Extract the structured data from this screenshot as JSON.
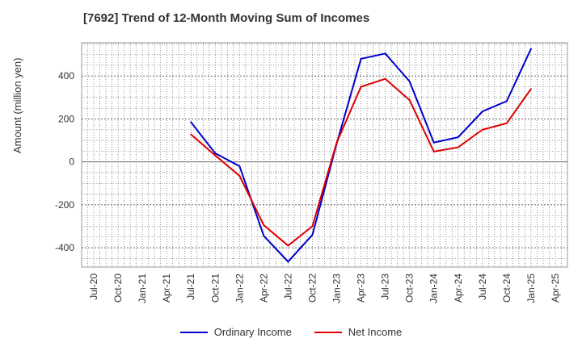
{
  "chart_data": {
    "type": "line",
    "title": "[7692]  Trend of 12-Month Moving Sum of Incomes",
    "xlabel": "",
    "ylabel": "Amount (million yen)",
    "categories": [
      "Jul-20",
      "Oct-20",
      "Jan-21",
      "Apr-21",
      "Jul-21",
      "Oct-21",
      "Jan-22",
      "Apr-22",
      "Jul-22",
      "Oct-22",
      "Jan-23",
      "Apr-23",
      "Jul-23",
      "Oct-23",
      "Jan-24",
      "Apr-24",
      "Jul-24",
      "Oct-24",
      "Jan-25",
      "Apr-25"
    ],
    "ylim": [
      -490,
      555
    ],
    "yticks": [
      -400,
      -200,
      0,
      200,
      400
    ],
    "ytick_labels": [
      "-400",
      "-200",
      "0",
      "200",
      "400"
    ],
    "grid": true,
    "legend_position": "bottom-center",
    "series": [
      {
        "name": "Ordinary Income",
        "color": "#0000cc",
        "values": [
          null,
          null,
          null,
          null,
          185,
          40,
          -20,
          -345,
          -465,
          -340,
          85,
          480,
          505,
          375,
          90,
          115,
          235,
          283,
          527,
          null
        ]
      },
      {
        "name": "Net Income",
        "color": "#dd0000",
        "values": [
          null,
          null,
          null,
          null,
          128,
          30,
          -65,
          -295,
          -390,
          -300,
          90,
          350,
          387,
          288,
          48,
          68,
          150,
          180,
          340,
          null
        ]
      }
    ]
  }
}
